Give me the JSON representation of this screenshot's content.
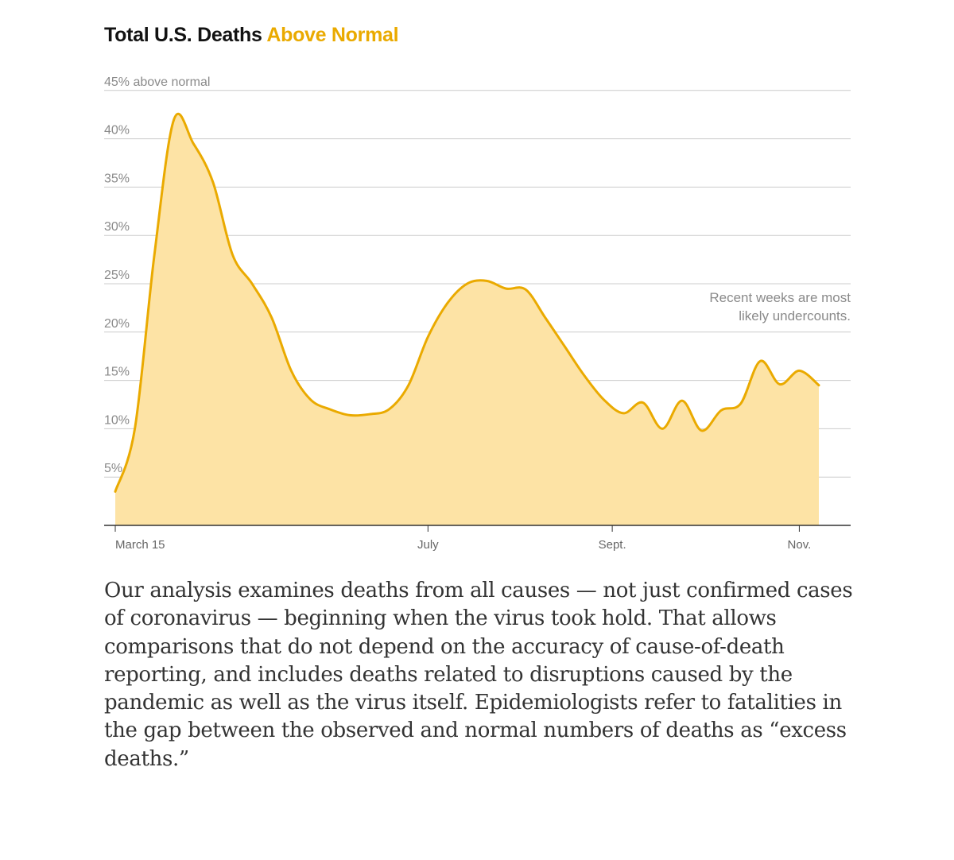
{
  "chart_title": {
    "main": "Total U.S. Deaths ",
    "highlight": "Above Normal"
  },
  "colors": {
    "line": "#eaaa00",
    "fill": "#fde3a5",
    "grid": "#cccccc",
    "axis": "#333333",
    "title_highlight": "#eaaa00"
  },
  "chart_data": {
    "type": "area",
    "title": "Total U.S. Deaths Above Normal",
    "xlabel": "",
    "ylabel": "",
    "x_unit": "days since March 9",
    "xlim": [
      0,
      252
    ],
    "ylim": [
      0,
      45
    ],
    "grid": true,
    "yticks": [
      {
        "value": 5,
        "label": "5%"
      },
      {
        "value": 10,
        "label": "10%"
      },
      {
        "value": 15,
        "label": "15%"
      },
      {
        "value": 20,
        "label": "20%"
      },
      {
        "value": 25,
        "label": "25%"
      },
      {
        "value": 30,
        "label": "30%"
      },
      {
        "value": 35,
        "label": "35%"
      },
      {
        "value": 40,
        "label": "40%"
      },
      {
        "value": 45,
        "label": "45% above normal"
      }
    ],
    "xticks": [
      {
        "value": 0,
        "label": "March 15"
      },
      {
        "value": 112,
        "label": "July"
      },
      {
        "value": 178,
        "label": "Sept."
      },
      {
        "value": 245,
        "label": "Nov."
      }
    ],
    "series": [
      {
        "name": "Deaths above normal",
        "x": [
          0,
          7,
          14,
          21,
          28,
          35,
          42,
          49,
          56,
          63,
          70,
          77,
          84,
          91,
          98,
          105,
          112,
          119,
          126,
          133,
          140,
          147,
          154,
          161,
          168,
          175,
          182,
          189,
          196,
          203,
          210,
          217,
          224,
          231,
          238,
          245,
          252
        ],
        "values": [
          3.5,
          10,
          28,
          42,
          39.5,
          35.5,
          28,
          25,
          21.5,
          16,
          13,
          12,
          11.4,
          11.5,
          12,
          14.5,
          19.5,
          23,
          25,
          25.3,
          24.5,
          24.4,
          21.5,
          18.5,
          15.5,
          13,
          11.6,
          12.7,
          10,
          12.9,
          9.8,
          11.9,
          12.6,
          17,
          14.6,
          16,
          14.5
        ]
      }
    ],
    "annotations": [
      {
        "lines": [
          "Recent weeks are most",
          "likely undercounts."
        ],
        "position": "right"
      }
    ]
  },
  "body_text": "Our analysis examines deaths from all causes — not just confirmed cases of coronavirus — beginning when the virus took hold. That allows comparisons that do not depend on the accuracy of cause-of-death reporting, and includes deaths related to disruptions caused by the pandemic as well as the virus itself. Epidemiologists refer to fatalities in the gap between the observed and normal numbers of deaths as “excess deaths.”"
}
